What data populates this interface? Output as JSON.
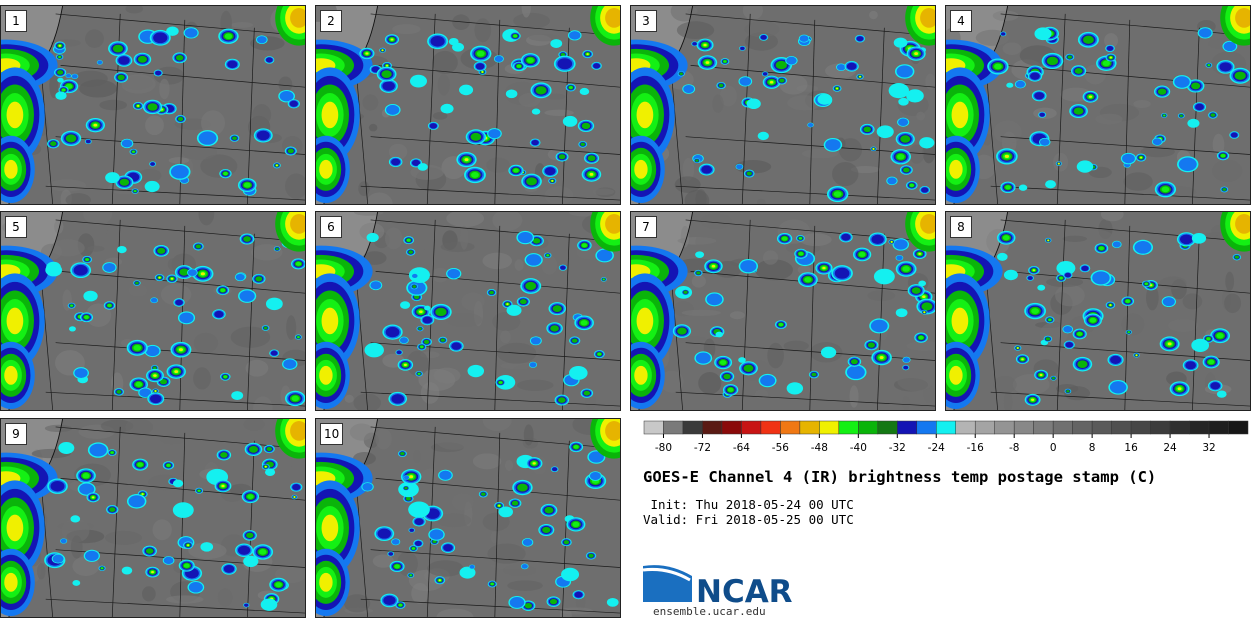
{
  "chart_data": {
    "type": "heatmap",
    "title": "GOES-E Channel 4 (IR) brightness temp postage stamp (C)",
    "init_line": " Init: Thu 2018-05-24 00 UTC",
    "valid_line": "Valid: Fri 2018-05-25 00 UTC",
    "panels": [
      {
        "label": "1"
      },
      {
        "label": "2"
      },
      {
        "label": "3"
      },
      {
        "label": "4"
      },
      {
        "label": "5"
      },
      {
        "label": "6"
      },
      {
        "label": "7"
      },
      {
        "label": "8"
      },
      {
        "label": "9"
      },
      {
        "label": "10"
      }
    ],
    "colorbar": {
      "min": -84,
      "max": 40,
      "step": 4,
      "tick_labels": [
        "-80",
        "-72",
        "-64",
        "-56",
        "-48",
        "-40",
        "-32",
        "-24",
        "-16",
        "-8",
        "0",
        "8",
        "16",
        "24",
        "32"
      ],
      "tick_values": [
        -80,
        -72,
        -64,
        -56,
        -48,
        -40,
        -32,
        -24,
        -16,
        -8,
        0,
        8,
        16,
        24,
        32
      ],
      "colors": [
        "#c8c8c8",
        "#7a7a7a",
        "#3a3a3a",
        "#5a1a14",
        "#8a0a0a",
        "#c81414",
        "#f03214",
        "#f07814",
        "#e6b400",
        "#f0f000",
        "#14f014",
        "#0ab40a",
        "#147814",
        "#1414b4",
        "#1478f0",
        "#14f0f0",
        "#b4b4b4",
        "#a4a4a4",
        "#949494",
        "#888888",
        "#7c7c7c",
        "#707070",
        "#646464",
        "#5a5a5a",
        "#505050",
        "#464646",
        "#3c3c3c",
        "#303030",
        "#262626",
        "#1e1e1e",
        "#161616"
      ]
    }
  },
  "logo": {
    "text": "NCAR",
    "url": "ensemble.ucar.edu"
  }
}
